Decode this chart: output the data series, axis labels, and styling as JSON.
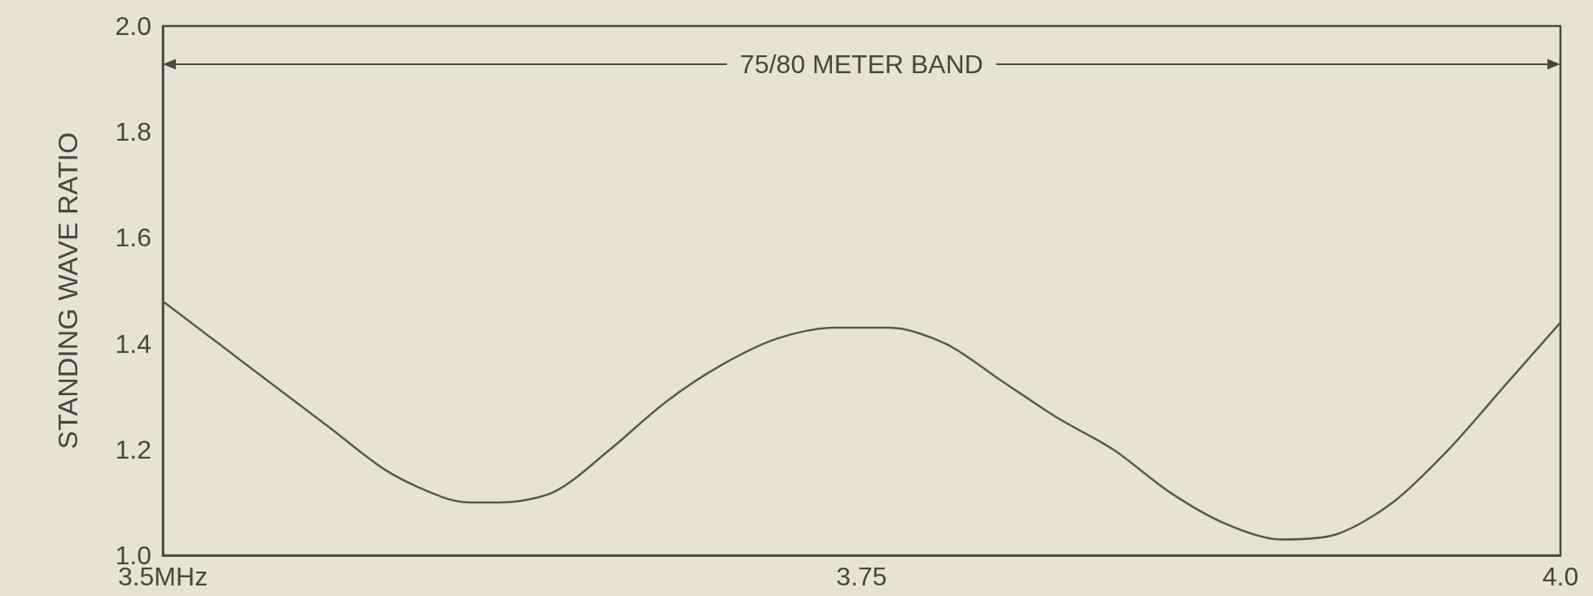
{
  "chart_data": {
    "type": "line",
    "ylabel": "STANDING WAVE RATIO",
    "x": [
      3.5,
      3.52,
      3.54,
      3.56,
      3.58,
      3.6,
      3.61,
      3.62,
      3.64,
      3.66,
      3.68,
      3.7,
      3.72,
      3.74,
      3.76,
      3.78,
      3.8,
      3.82,
      3.84,
      3.86,
      3.88,
      3.9,
      3.92,
      3.94,
      3.96,
      3.98,
      4.0
    ],
    "series": [
      {
        "color": "#5a5550",
        "values": [
          1.48,
          1.4,
          1.32,
          1.24,
          1.16,
          1.11,
          1.1,
          1.1,
          1.12,
          1.2,
          1.29,
          1.36,
          1.41,
          1.43,
          1.43,
          1.4,
          1.33,
          1.26,
          1.2,
          1.12,
          1.06,
          1.03,
          1.04,
          1.1,
          1.2,
          1.32,
          1.44
        ]
      }
    ],
    "xlim": [
      3.5,
      4.0
    ],
    "xticks": [
      {
        "value": 3.5,
        "label": "3.5MHz"
      },
      3.75,
      {
        "value": 4.0,
        "label": "4.0"
      }
    ],
    "ylim": [
      1.0,
      2.0
    ],
    "yticks": [
      {
        "value": 1.0,
        "label": "1.0"
      },
      1.2,
      1.4,
      1.6,
      1.8,
      {
        "value": 2.0,
        "label": "2.0"
      }
    ],
    "annotations": [
      "75/80 METER BAND"
    ],
    "grid": false,
    "marker": "none",
    "line_style": "solid"
  }
}
